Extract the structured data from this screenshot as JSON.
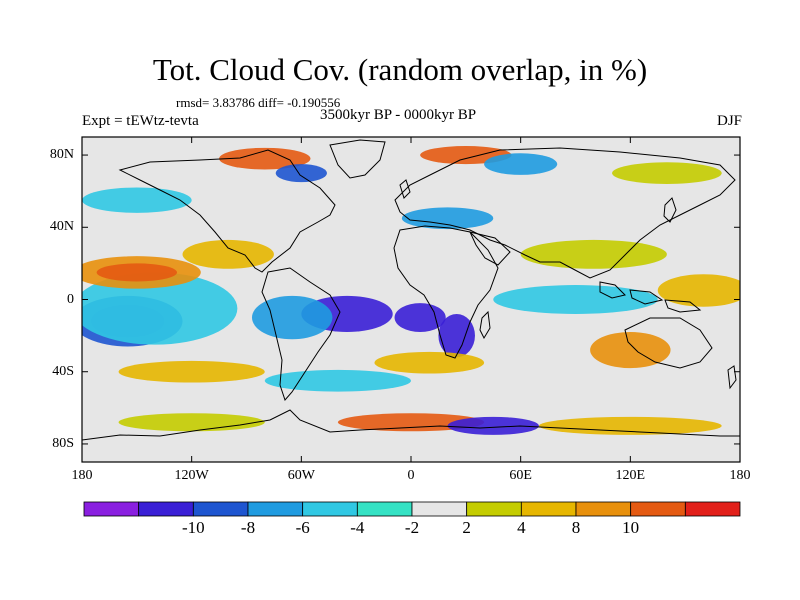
{
  "title": "Tot. Cloud Cov. (random overlap, in %)",
  "stats": "rmsd= 3.83786 diff= -0.190556",
  "experiment": "Expt = tEWtz-tevta",
  "period": "3500kyr BP - 0000kyr BP",
  "season": "DJF",
  "map": {
    "lon_range": [
      -180,
      180
    ],
    "lat_range": [
      -90,
      90
    ],
    "y_ticks": [
      {
        "value": 80,
        "label": "80N"
      },
      {
        "value": 40,
        "label": "40N"
      },
      {
        "value": 0,
        "label": "0"
      },
      {
        "value": -40,
        "label": "40S"
      },
      {
        "value": -80,
        "label": "80S"
      }
    ],
    "x_ticks": [
      {
        "value": -180,
        "label": "180"
      },
      {
        "value": -120,
        "label": "120W"
      },
      {
        "value": -60,
        "label": "60W"
      },
      {
        "value": 0,
        "label": "0"
      },
      {
        "value": 60,
        "label": "60E"
      },
      {
        "value": 120,
        "label": "120E"
      },
      {
        "value": 180,
        "label": "180"
      }
    ],
    "anomaly_regions": [
      {
        "lon": -155,
        "lat": -12,
        "rx": 20,
        "ry": 9,
        "bin": 0
      },
      {
        "lon": -155,
        "lat": -12,
        "rx": 30,
        "ry": 14,
        "bin": 2
      },
      {
        "lon": -140,
        "lat": -5,
        "rx": 45,
        "ry": 20,
        "bin": 4
      },
      {
        "lon": -35,
        "lat": -8,
        "rx": 25,
        "ry": 10,
        "bin": 1
      },
      {
        "lon": 5,
        "lat": -10,
        "rx": 14,
        "ry": 8,
        "bin": 1
      },
      {
        "lon": 25,
        "lat": -20,
        "rx": 10,
        "ry": 12,
        "bin": 1
      },
      {
        "lon": -65,
        "lat": -10,
        "rx": 22,
        "ry": 12,
        "bin": 3
      },
      {
        "lon": -150,
        "lat": 15,
        "rx": 35,
        "ry": 9,
        "bin": 9
      },
      {
        "lon": -150,
        "lat": 15,
        "rx": 22,
        "ry": 5,
        "bin": 10
      },
      {
        "lon": -100,
        "lat": 25,
        "rx": 25,
        "ry": 8,
        "bin": 8
      },
      {
        "lon": 100,
        "lat": 25,
        "rx": 40,
        "ry": 8,
        "bin": 7
      },
      {
        "lon": 90,
        "lat": 0,
        "rx": 45,
        "ry": 8,
        "bin": 4
      },
      {
        "lon": 160,
        "lat": 5,
        "rx": 25,
        "ry": 9,
        "bin": 8
      },
      {
        "lon": 120,
        "lat": -28,
        "rx": 22,
        "ry": 10,
        "bin": 9
      },
      {
        "lon": -120,
        "lat": -40,
        "rx": 40,
        "ry": 6,
        "bin": 8
      },
      {
        "lon": -40,
        "lat": -45,
        "rx": 40,
        "ry": 6,
        "bin": 4
      },
      {
        "lon": 0,
        "lat": -68,
        "rx": 40,
        "ry": 5,
        "bin": 10
      },
      {
        "lon": 45,
        "lat": -70,
        "rx": 25,
        "ry": 5,
        "bin": 1
      },
      {
        "lon": -120,
        "lat": -68,
        "rx": 40,
        "ry": 5,
        "bin": 7
      },
      {
        "lon": 120,
        "lat": -70,
        "rx": 50,
        "ry": 5,
        "bin": 8
      },
      {
        "lon": -80,
        "lat": 78,
        "rx": 25,
        "ry": 6,
        "bin": 10
      },
      {
        "lon": -60,
        "lat": 70,
        "rx": 14,
        "ry": 5,
        "bin": 2
      },
      {
        "lon": 30,
        "lat": 80,
        "rx": 25,
        "ry": 5,
        "bin": 10
      },
      {
        "lon": 60,
        "lat": 75,
        "rx": 20,
        "ry": 6,
        "bin": 3
      },
      {
        "lon": 140,
        "lat": 70,
        "rx": 30,
        "ry": 6,
        "bin": 7
      },
      {
        "lon": -150,
        "lat": 55,
        "rx": 30,
        "ry": 7,
        "bin": 4
      },
      {
        "lon": 20,
        "lat": 45,
        "rx": 25,
        "ry": 6,
        "bin": 3
      },
      {
        "lon": 10,
        "lat": -35,
        "rx": 30,
        "ry": 6,
        "bin": 8
      }
    ]
  },
  "colorbar": {
    "colors": [
      "#8a1fe0",
      "#3a1fd6",
      "#1e55d0",
      "#1f9be0",
      "#30c8e3",
      "#35e2c4",
      "#e6e6e6",
      "#c4cc00",
      "#e6b600",
      "#e8900c",
      "#e45a12",
      "#e2201a"
    ],
    "labels": [
      {
        "index": 1,
        "text": "-10"
      },
      {
        "index": 2,
        "text": "-8"
      },
      {
        "index": 3,
        "text": "-6"
      },
      {
        "index": 4,
        "text": "-4"
      },
      {
        "index": 5,
        "text": "-2"
      },
      {
        "index": 6,
        "text": "2"
      },
      {
        "index": 7,
        "text": "4"
      },
      {
        "index": 8,
        "text": "8"
      },
      {
        "index": 9,
        "text": "10"
      }
    ]
  }
}
